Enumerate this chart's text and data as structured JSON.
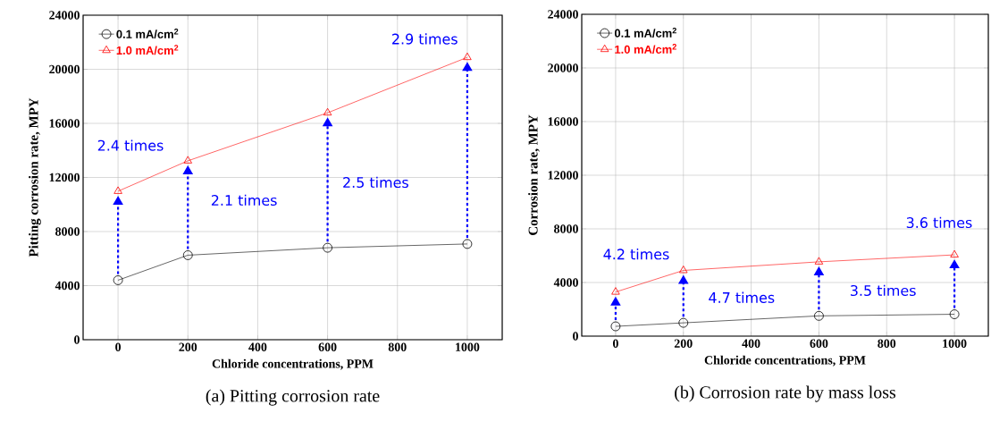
{
  "chart_data": [
    {
      "type": "line",
      "xlabel": "Chloride concentrations, PPM",
      "ylabel": "Pitting corrosion rate, MPY",
      "x": [
        0,
        200,
        600,
        1000
      ],
      "series": [
        {
          "name": "0.1 mA/cm$^{2}$",
          "color": "#000000",
          "marker": "circle",
          "values": [
            4400,
            6250,
            6800,
            7080
          ]
        },
        {
          "name": "1.0 mA/cm$^{2}$",
          "color": "#ff0000",
          "marker": "triangle",
          "values": [
            10980,
            13230,
            16780,
            20880
          ]
        }
      ],
      "xlim": [
        -100,
        1100
      ],
      "xticks": [
        0,
        200,
        400,
        600,
        800,
        1000
      ],
      "ylim": [
        0,
        24000
      ],
      "yticks": [
        0,
        4000,
        8000,
        12000,
        16000,
        20000,
        24000
      ],
      "grid": true,
      "legend": "top left",
      "line_style": "solid",
      "annotations": [
        "2.4 times",
        "2.1 times",
        "2.5 times",
        "2.9 times",
        "(a) Pitting corrosion rate"
      ]
    },
    {
      "type": "line",
      "xlabel": "Chloride concentrations, PPM",
      "ylabel": "Corrosion rate, MPY",
      "x": [
        0,
        200,
        600,
        1000
      ],
      "series": [
        {
          "name": "0.1 mA/cm$^{2}$",
          "color": "#000000",
          "marker": "circle",
          "values": [
            730,
            990,
            1510,
            1630
          ]
        },
        {
          "name": "1.0 mA/cm$^{2}$",
          "color": "#ff0000",
          "marker": "triangle",
          "values": [
            3290,
            4900,
            5540,
            6060
          ]
        }
      ],
      "xlim": [
        -100,
        1100
      ],
      "xticks": [
        0,
        200,
        400,
        600,
        800,
        1000
      ],
      "ylim": [
        0,
        24000
      ],
      "yticks": [
        0,
        4000,
        8000,
        12000,
        16000,
        20000,
        24000
      ],
      "grid": true,
      "legend": "top left",
      "line_style": "solid",
      "annotations": [
        "4.2 times",
        "4.7 times",
        "3.5 times",
        "3.6 times",
        "(b) Corrosion rate by mass loss"
      ]
    }
  ]
}
